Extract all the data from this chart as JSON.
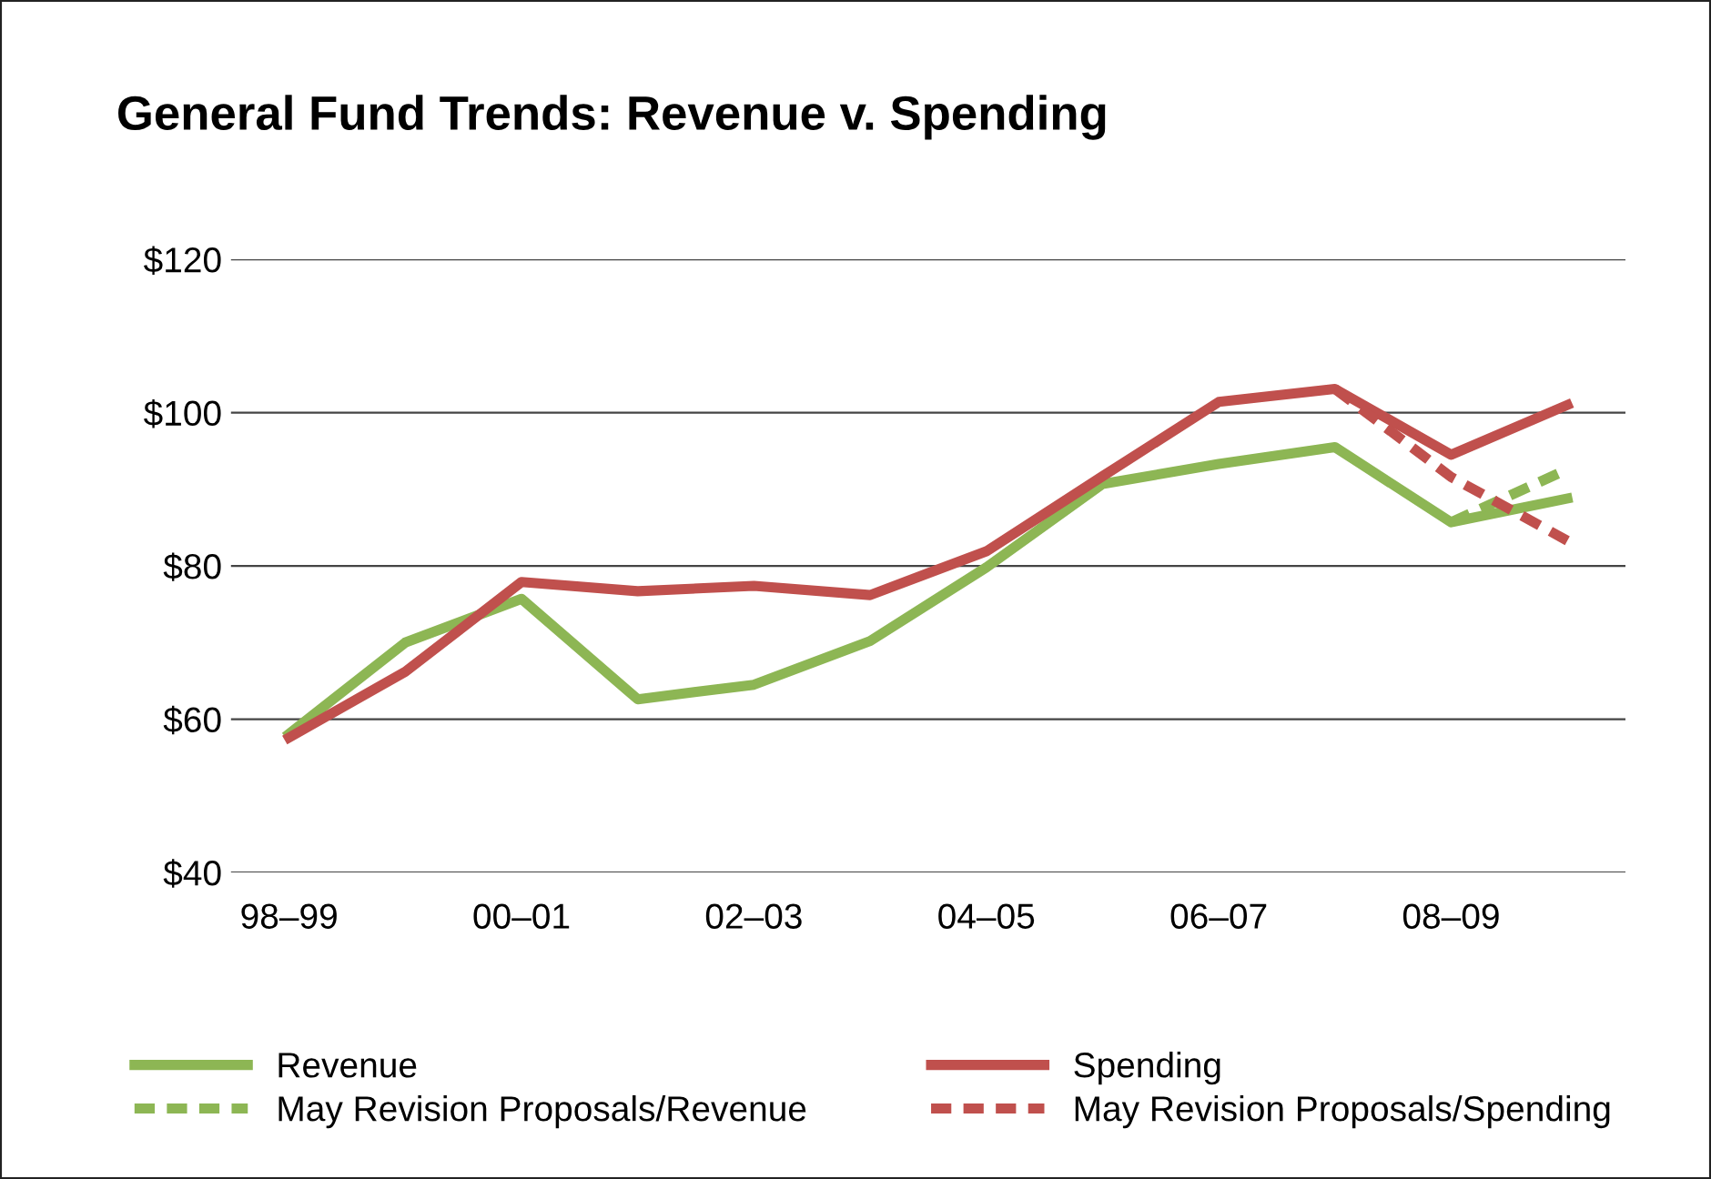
{
  "chart_data": {
    "type": "line",
    "title": "General Fund Trends: Revenue v. Spending",
    "categories": [
      "98–99",
      null,
      "00–01",
      null,
      "02–03",
      null,
      "04–05",
      null,
      "06–07",
      null,
      "08–09",
      null
    ],
    "series": [
      {
        "name": "Revenue",
        "color": "#8db654",
        "line_style": "solid",
        "values": [
          58.1,
          70.0,
          75.7,
          62.6,
          64.5,
          70.2,
          79.8,
          90.7,
          93.3,
          95.5,
          85.7,
          88.8
        ]
      },
      {
        "name": "Spending",
        "color": "#c0504d",
        "line_style": "solid",
        "values": [
          57.6,
          66.2,
          77.9,
          76.7,
          77.4,
          76.2,
          81.9,
          91.7,
          101.4,
          103.1,
          94.5,
          101.0
        ]
      },
      {
        "name": "May Revision Proposals/Revenue",
        "color": "#8db654",
        "line_style": "dashed",
        "values": [
          null,
          null,
          null,
          null,
          null,
          null,
          null,
          null,
          null,
          null,
          85.7,
          92.6
        ]
      },
      {
        "name": "May Revision Proposals/Spending",
        "color": "#c0504d",
        "line_style": "dashed",
        "values": [
          null,
          null,
          null,
          null,
          null,
          null,
          null,
          null,
          null,
          103.1,
          91.6,
          83.3
        ]
      }
    ],
    "ylim": [
      40,
      120
    ],
    "yticks": [
      {
        "value": 40,
        "label": "$40"
      },
      {
        "value": 60,
        "label": "$60"
      },
      {
        "value": 80,
        "label": "$80"
      },
      {
        "value": 100,
        "label": "$100"
      },
      {
        "value": 120,
        "label": "$120"
      }
    ],
    "grid": "y",
    "legend": "bottom",
    "marker": "none"
  }
}
